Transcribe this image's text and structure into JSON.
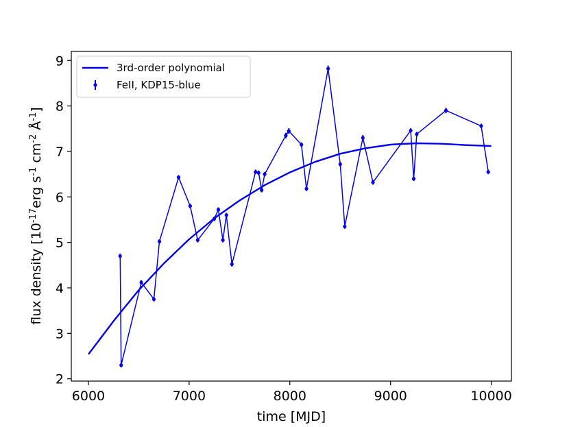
{
  "chart_data": {
    "type": "line",
    "xlabel": "time [MJD]",
    "ylabel": "flux density [10$^{-17}$erg s$^{-1}$ cm$^{-2}$ Å$^{-1}$]",
    "xlim": [
      5830,
      10200
    ],
    "ylim": [
      1.95,
      9.2
    ],
    "xticks": [
      6000,
      7000,
      8000,
      9000,
      10000
    ],
    "yticks": [
      2,
      3,
      4,
      5,
      6,
      7,
      8,
      9
    ],
    "legend_position": "top-left",
    "colors": {
      "series": "#0000ee"
    },
    "legend": {
      "fit_label": "3rd-order polynomial",
      "data_label": "FeII, KDP15-blue"
    },
    "series": [
      {
        "name": "3rd-order polynomial",
        "kind": "line",
        "x": [
          6000,
          6250,
          6500,
          6750,
          7000,
          7250,
          7500,
          7750,
          8000,
          8250,
          8500,
          8750,
          9000,
          9250,
          9500,
          9750,
          10000
        ],
        "y": [
          2.54,
          3.27,
          3.95,
          4.54,
          5.07,
          5.53,
          5.92,
          6.26,
          6.54,
          6.77,
          6.95,
          7.07,
          7.15,
          7.18,
          7.17,
          7.14,
          7.12
        ]
      },
      {
        "name": "FeII, KDP15-blue",
        "kind": "errorbar",
        "x": [
          6315,
          6325,
          6525,
          6650,
          6705,
          6895,
          7010,
          7085,
          7250,
          7290,
          7335,
          7370,
          7425,
          7660,
          7690,
          7720,
          7750,
          7960,
          7990,
          8115,
          8165,
          8380,
          8500,
          8545,
          8725,
          8825,
          9200,
          9230,
          9260,
          9550,
          9900,
          9970
        ],
        "y": [
          4.7,
          2.3,
          4.12,
          3.75,
          5.02,
          6.43,
          5.8,
          5.05,
          5.52,
          5.72,
          5.05,
          5.6,
          4.52,
          6.55,
          6.53,
          6.15,
          6.5,
          7.35,
          7.45,
          7.15,
          6.18,
          8.82,
          6.72,
          5.35,
          7.3,
          6.32,
          7.46,
          6.4,
          7.38,
          7.9,
          7.56,
          6.55
        ],
        "yerr": [
          0.05,
          0.05,
          0.05,
          0.05,
          0.05,
          0.05,
          0.05,
          0.05,
          0.05,
          0.05,
          0.05,
          0.05,
          0.05,
          0.05,
          0.05,
          0.05,
          0.05,
          0.06,
          0.06,
          0.05,
          0.05,
          0.07,
          0.05,
          0.05,
          0.06,
          0.05,
          0.05,
          0.05,
          0.05,
          0.06,
          0.05,
          0.05
        ]
      }
    ]
  }
}
